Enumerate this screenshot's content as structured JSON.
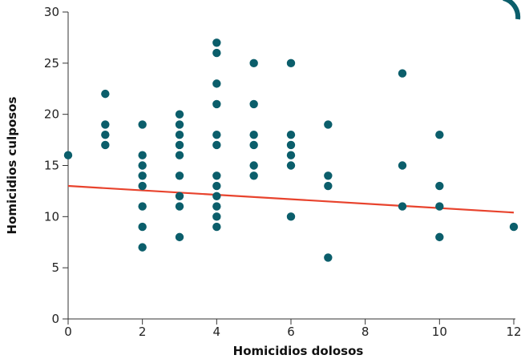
{
  "chart_data": {
    "type": "scatter",
    "xlabel": "Homicidios dolosos",
    "ylabel": "Homicidios culposos",
    "xlim": [
      0,
      12
    ],
    "ylim": [
      0,
      30
    ],
    "x_ticks": [
      "0",
      "2",
      "4",
      "6",
      "8",
      "10",
      "12"
    ],
    "y_ticks": [
      "0",
      "5",
      "10",
      "15",
      "20",
      "25",
      "30"
    ],
    "grid": false,
    "point_color": "#0b5e6b",
    "trend_color": "#e8432d",
    "points": [
      {
        "x": 0,
        "y": 16
      },
      {
        "x": 1,
        "y": 22
      },
      {
        "x": 1,
        "y": 19
      },
      {
        "x": 1,
        "y": 18
      },
      {
        "x": 1,
        "y": 17
      },
      {
        "x": 2,
        "y": 19
      },
      {
        "x": 2,
        "y": 16
      },
      {
        "x": 2,
        "y": 15
      },
      {
        "x": 2,
        "y": 14
      },
      {
        "x": 2,
        "y": 13
      },
      {
        "x": 2,
        "y": 11
      },
      {
        "x": 2,
        "y": 9
      },
      {
        "x": 2,
        "y": 7
      },
      {
        "x": 3,
        "y": 20
      },
      {
        "x": 3,
        "y": 19
      },
      {
        "x": 3,
        "y": 18
      },
      {
        "x": 3,
        "y": 17
      },
      {
        "x": 3,
        "y": 16
      },
      {
        "x": 3,
        "y": 14
      },
      {
        "x": 3,
        "y": 12
      },
      {
        "x": 3,
        "y": 11
      },
      {
        "x": 3,
        "y": 8
      },
      {
        "x": 4,
        "y": 27
      },
      {
        "x": 4,
        "y": 26
      },
      {
        "x": 4,
        "y": 23
      },
      {
        "x": 4,
        "y": 21
      },
      {
        "x": 4,
        "y": 18
      },
      {
        "x": 4,
        "y": 17
      },
      {
        "x": 4,
        "y": 14
      },
      {
        "x": 4,
        "y": 13
      },
      {
        "x": 4,
        "y": 12
      },
      {
        "x": 4,
        "y": 11
      },
      {
        "x": 4,
        "y": 10
      },
      {
        "x": 4,
        "y": 9
      },
      {
        "x": 5,
        "y": 25
      },
      {
        "x": 5,
        "y": 21
      },
      {
        "x": 5,
        "y": 18
      },
      {
        "x": 5,
        "y": 17
      },
      {
        "x": 5,
        "y": 15
      },
      {
        "x": 5,
        "y": 14
      },
      {
        "x": 6,
        "y": 25
      },
      {
        "x": 6,
        "y": 18
      },
      {
        "x": 6,
        "y": 17
      },
      {
        "x": 6,
        "y": 16
      },
      {
        "x": 6,
        "y": 15
      },
      {
        "x": 6,
        "y": 10
      },
      {
        "x": 7,
        "y": 19
      },
      {
        "x": 7,
        "y": 14
      },
      {
        "x": 7,
        "y": 13
      },
      {
        "x": 7,
        "y": 6
      },
      {
        "x": 9,
        "y": 24
      },
      {
        "x": 9,
        "y": 15
      },
      {
        "x": 9,
        "y": 11
      },
      {
        "x": 10,
        "y": 18
      },
      {
        "x": 10,
        "y": 13
      },
      {
        "x": 10,
        "y": 11
      },
      {
        "x": 10,
        "y": 8
      },
      {
        "x": 12,
        "y": 9
      }
    ],
    "trend_line": {
      "x": [
        0,
        12
      ],
      "y": [
        13.0,
        10.4
      ]
    }
  }
}
